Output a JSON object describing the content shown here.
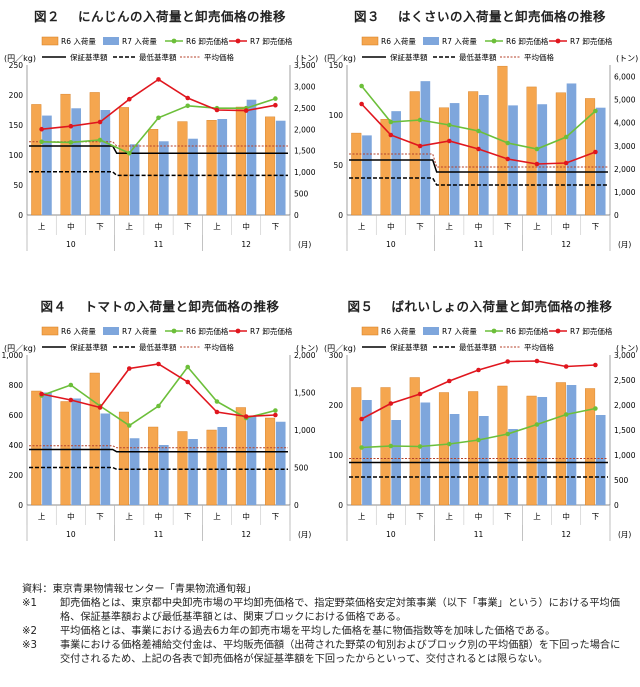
{
  "legend": {
    "r6_volume": "R6 入荷量",
    "r7_volume": "R7 入荷量",
    "r6_price": "R6 卸売価格",
    "r7_price": "R7 卸売価格",
    "guarantee": "保証基準額",
    "minimum": "最低基準額",
    "average": "平均価格"
  },
  "axis": {
    "left_unit": "(円／kg)",
    "right_unit": "(トン)",
    "month_unit": "(月)",
    "periods": [
      "上",
      "中",
      "下"
    ],
    "months": [
      "10",
      "11",
      "12"
    ]
  },
  "colors": {
    "r6_bar": "#f5a64f",
    "r7_bar": "#7ea6dc",
    "r6_line": "#6cbf3a",
    "r7_line": "#e0161e",
    "guarantee": "#000000",
    "minimum": "#000000",
    "average": "#b4402a"
  },
  "chart_data": [
    {
      "type": "bar+line",
      "fig": "図２",
      "title": "にんじんの入荷量と卸売価格の推移",
      "categories": [
        "10上",
        "10中",
        "10下",
        "11上",
        "11中",
        "11下",
        "12上",
        "12中",
        "12下"
      ],
      "price_axis": {
        "min": 0,
        "max": 250,
        "ticks": [
          "0",
          "50",
          "100",
          "150",
          "200",
          "250"
        ]
      },
      "volume_axis": {
        "min": 0,
        "max": 3500,
        "ticks": [
          "0",
          "500",
          "1,000",
          "1,500",
          "2,000",
          "2,500",
          "3,000",
          "3,500"
        ]
      },
      "series": [
        {
          "name": "R6 入荷量",
          "axis": "right",
          "kind": "bar",
          "values": [
            2580,
            2820,
            2860,
            2510,
            2000,
            2180,
            2210,
            2520,
            2290
          ]
        },
        {
          "name": "R7 入荷量",
          "axis": "right",
          "kind": "bar",
          "values": [
            2320,
            2490,
            2450,
            1650,
            1720,
            1780,
            2240,
            2690,
            2200
          ]
        },
        {
          "name": "R6 卸売価格",
          "axis": "left",
          "kind": "line",
          "values": [
            122,
            121,
            125,
            103,
            162,
            182,
            178,
            178,
            194
          ]
        },
        {
          "name": "R7 卸売価格",
          "axis": "left",
          "kind": "line",
          "values": [
            143,
            148,
            155,
            193,
            226,
            195,
            175,
            174,
            183
          ]
        },
        {
          "name": "保証基準額",
          "axis": "left",
          "kind": "level",
          "values": [
            115,
            115,
            115,
            103,
            103,
            103,
            103,
            103,
            103
          ]
        },
        {
          "name": "最低基準額",
          "axis": "left",
          "kind": "level",
          "values": [
            72,
            72,
            72,
            66,
            66,
            66,
            66,
            66,
            66
          ]
        },
        {
          "name": "平均価格",
          "axis": "left",
          "kind": "level",
          "values": [
            122,
            122,
            122,
            115,
            115,
            115,
            115,
            115,
            115
          ]
        }
      ]
    },
    {
      "type": "bar+line",
      "fig": "図３",
      "title": "はくさいの入荷量と卸売価格の推移",
      "categories": [
        "10上",
        "10中",
        "10下",
        "11上",
        "11中",
        "11下",
        "12上",
        "12中",
        "12下"
      ],
      "price_axis": {
        "min": 0,
        "max": 150,
        "ticks": [
          "0",
          "50",
          "100",
          "150"
        ]
      },
      "volume_axis": {
        "min": 0,
        "max": 6500,
        "ticks": [
          "0",
          "1,000",
          "2,000",
          "3,000",
          "4,000",
          "5,000",
          "6,000"
        ]
      },
      "series": [
        {
          "name": "R6 入荷量",
          "axis": "right",
          "kind": "bar",
          "values": [
            3550,
            4150,
            5350,
            4650,
            5350,
            6450,
            5550,
            5300,
            5050
          ]
        },
        {
          "name": "R7 入荷量",
          "axis": "right",
          "kind": "bar",
          "values": [
            3450,
            4500,
            5800,
            4850,
            5200,
            4750,
            4800,
            5700,
            4650
          ]
        },
        {
          "name": "R6 卸売価格",
          "axis": "left",
          "kind": "line",
          "values": [
            129,
            93,
            95,
            90,
            84,
            72,
            66,
            78,
            104
          ]
        },
        {
          "name": "R7 卸売価格",
          "axis": "left",
          "kind": "line",
          "values": [
            111,
            80,
            69,
            74,
            66,
            56,
            51,
            52,
            63
          ]
        },
        {
          "name": "保証基準額",
          "axis": "left",
          "kind": "level",
          "values": [
            55,
            55,
            55,
            43,
            43,
            43,
            43,
            43,
            43
          ]
        },
        {
          "name": "最低基準額",
          "axis": "left",
          "kind": "level",
          "values": [
            37,
            37,
            37,
            30,
            30,
            30,
            30,
            30,
            30
          ]
        },
        {
          "name": "平均価格",
          "axis": "left",
          "kind": "level",
          "values": [
            61,
            61,
            61,
            48,
            48,
            48,
            48,
            48,
            48
          ]
        }
      ]
    },
    {
      "type": "bar+line",
      "fig": "図４",
      "title": "トマトの入荷量と卸売価格の推移",
      "categories": [
        "10上",
        "10中",
        "10下",
        "11上",
        "11中",
        "11下",
        "12上",
        "12中",
        "12下"
      ],
      "price_axis": {
        "min": 0,
        "max": 1000,
        "ticks": [
          "0",
          "200",
          "400",
          "600",
          "800",
          "1,000"
        ]
      },
      "volume_axis": {
        "min": 0,
        "max": 2000,
        "ticks": [
          "0",
          "500",
          "1,000",
          "1,500",
          "2,000"
        ]
      },
      "series": [
        {
          "name": "R6 入荷量",
          "axis": "right",
          "kind": "bar",
          "values": [
            1520,
            1380,
            1760,
            1240,
            1040,
            980,
            1000,
            1300,
            1160
          ]
        },
        {
          "name": "R7 入荷量",
          "axis": "right",
          "kind": "bar",
          "values": [
            1500,
            1420,
            1220,
            890,
            800,
            880,
            1040,
            1180,
            1110
          ]
        },
        {
          "name": "R6 卸売価格",
          "axis": "left",
          "kind": "line",
          "values": [
            730,
            800,
            660,
            530,
            660,
            920,
            690,
            580,
            630
          ]
        },
        {
          "name": "R7 卸売価格",
          "axis": "left",
          "kind": "line",
          "values": [
            740,
            700,
            650,
            910,
            940,
            820,
            620,
            590,
            600
          ]
        },
        {
          "name": "保証基準額",
          "axis": "left",
          "kind": "level",
          "values": [
            370,
            370,
            370,
            355,
            355,
            355,
            355,
            355,
            355
          ]
        },
        {
          "name": "最低基準額",
          "axis": "left",
          "kind": "level",
          "values": [
            250,
            250,
            250,
            238,
            238,
            238,
            238,
            238,
            238
          ]
        },
        {
          "name": "平均価格",
          "axis": "left",
          "kind": "level",
          "values": [
            395,
            395,
            395,
            382,
            382,
            382,
            382,
            382,
            382
          ]
        }
      ]
    },
    {
      "type": "bar+line",
      "fig": "図５",
      "title": "ばれいしょの入荷量と卸売価格の推移",
      "categories": [
        "10上",
        "10中",
        "10下",
        "11上",
        "11中",
        "11下",
        "12上",
        "12中",
        "12下"
      ],
      "price_axis": {
        "min": 0,
        "max": 300,
        "ticks": [
          "0",
          "100",
          "200",
          "300"
        ]
      },
      "volume_axis": {
        "min": 0,
        "max": 3000,
        "ticks": [
          "0",
          "500",
          "1,000",
          "1,500",
          "2,000",
          "2,500",
          "3,000"
        ]
      },
      "series": [
        {
          "name": "R6 入荷量",
          "axis": "right",
          "kind": "bar",
          "values": [
            2350,
            2350,
            2550,
            2250,
            2270,
            2380,
            2180,
            2450,
            2330
          ]
        },
        {
          "name": "R7 入荷量",
          "axis": "right",
          "kind": "bar",
          "values": [
            2100,
            1700,
            2050,
            1820,
            1780,
            1520,
            2160,
            2400,
            1800
          ]
        },
        {
          "name": "R6 卸売価格",
          "axis": "left",
          "kind": "line",
          "values": [
            115,
            118,
            117,
            122,
            130,
            142,
            161,
            181,
            193
          ]
        },
        {
          "name": "R7 卸売価格",
          "axis": "left",
          "kind": "line",
          "values": [
            172,
            203,
            222,
            248,
            270,
            287,
            288,
            277,
            280
          ]
        },
        {
          "name": "保証基準額",
          "axis": "left",
          "kind": "level",
          "values": [
            85,
            85,
            85,
            85,
            85,
            85,
            85,
            85,
            85
          ]
        },
        {
          "name": "最低基準額",
          "axis": "left",
          "kind": "level",
          "values": [
            56,
            56,
            56,
            56,
            56,
            56,
            56,
            56,
            56
          ]
        },
        {
          "name": "平均価格",
          "axis": "left",
          "kind": "level",
          "values": [
            93,
            93,
            93,
            93,
            93,
            93,
            93,
            93,
            93
          ]
        }
      ]
    }
  ],
  "notes": {
    "source_label": "資料：",
    "source": "東京青果物情報センター「青果物流通旬報」",
    "items": [
      {
        "mark": "※1",
        "text": "卸売価格とは、東京都中央卸売市場の平均卸売価格で、指定野菜価格安定対策事業（以下「事業」という）における平均価格、保証基準額および最低基準額とは、関東ブロックにおける価格である。"
      },
      {
        "mark": "※2",
        "text": "平均価格とは、事業における過去6カ年の卸売市場を平均した価格を基に物価指数等を加味した価格である。"
      },
      {
        "mark": "※3",
        "text": "事業における価格差補給交付金は、平均販売価額（出荷された野菜の旬別およびブロック別の平均価額）を下回った場合に交付されるため、上記の各表で卸売価格が保証基準額を下回ったからといって、交付されるとは限らない。"
      }
    ]
  }
}
